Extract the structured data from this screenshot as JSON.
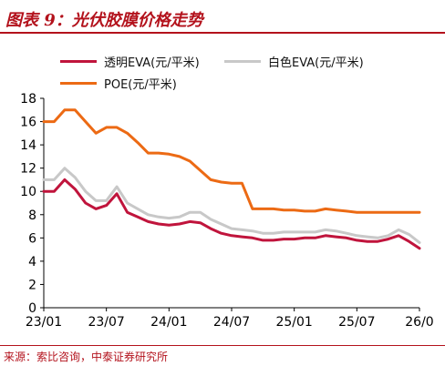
{
  "header": {
    "title": "图表 9：光伏胶膜价格走势"
  },
  "footer": {
    "source": "来源：索比咨询，中泰证券研究所"
  },
  "chart_data": {
    "type": "line",
    "title": "图表 9：光伏胶膜价格走势",
    "xlabel": "",
    "ylabel": "",
    "ylim": [
      0,
      18
    ],
    "yticks": [
      "0",
      "2",
      "4",
      "6",
      "8",
      "10",
      "12",
      "14",
      "16",
      "18"
    ],
    "xticks": [
      "23/01",
      "23/07",
      "24/01",
      "24/07",
      "25/01",
      "25/07",
      "26/0"
    ],
    "grid": false,
    "legend": "top",
    "x": [
      "23/01",
      "23/02",
      "23/03",
      "23/04",
      "23/05",
      "23/06",
      "23/07",
      "23/08",
      "23/09",
      "23/10",
      "23/11",
      "23/12",
      "24/01",
      "24/02",
      "24/03",
      "24/04",
      "24/05",
      "24/06",
      "24/07",
      "24/08",
      "24/09",
      "24/10",
      "24/11",
      "24/12",
      "25/01",
      "25/02",
      "25/03",
      "25/04",
      "25/05",
      "25/06",
      "25/07",
      "25/08",
      "25/09",
      "25/10",
      "25/11",
      "25/12",
      "26/01"
    ],
    "series": [
      {
        "name": "透明EVA(元/平米)",
        "color": "#c0143c",
        "values": [
          10.0,
          10.0,
          11.0,
          10.2,
          9.0,
          8.5,
          8.8,
          9.8,
          8.2,
          7.8,
          7.4,
          7.2,
          7.1,
          7.2,
          7.4,
          7.3,
          6.8,
          6.4,
          6.2,
          6.1,
          6.0,
          5.8,
          5.8,
          5.9,
          5.9,
          6.0,
          6.0,
          6.2,
          6.1,
          6.0,
          5.8,
          5.7,
          5.7,
          5.9,
          6.2,
          5.7,
          5.1
        ]
      },
      {
        "name": "白色EVA(元/平米)",
        "color": "#c8c8c8",
        "values": [
          11.0,
          11.0,
          12.0,
          11.2,
          10.0,
          9.2,
          9.2,
          10.4,
          9.0,
          8.5,
          8.0,
          7.8,
          7.7,
          7.8,
          8.2,
          8.2,
          7.6,
          7.2,
          6.8,
          6.7,
          6.6,
          6.4,
          6.4,
          6.5,
          6.5,
          6.5,
          6.5,
          6.7,
          6.6,
          6.4,
          6.2,
          6.1,
          6.0,
          6.2,
          6.7,
          6.3,
          5.6
        ]
      },
      {
        "name": "POE(元/平米)",
        "color": "#ec6a14",
        "values": [
          16.0,
          16.0,
          17.0,
          17.0,
          16.0,
          15.0,
          15.5,
          15.5,
          15.0,
          14.2,
          13.3,
          13.3,
          13.2,
          13.0,
          12.6,
          11.8,
          11.0,
          10.8,
          10.7,
          10.7,
          8.5,
          8.5,
          8.5,
          8.4,
          8.4,
          8.3,
          8.3,
          8.5,
          8.4,
          8.3,
          8.2,
          8.2,
          8.2,
          8.2,
          8.2,
          8.2,
          8.2
        ]
      }
    ]
  }
}
